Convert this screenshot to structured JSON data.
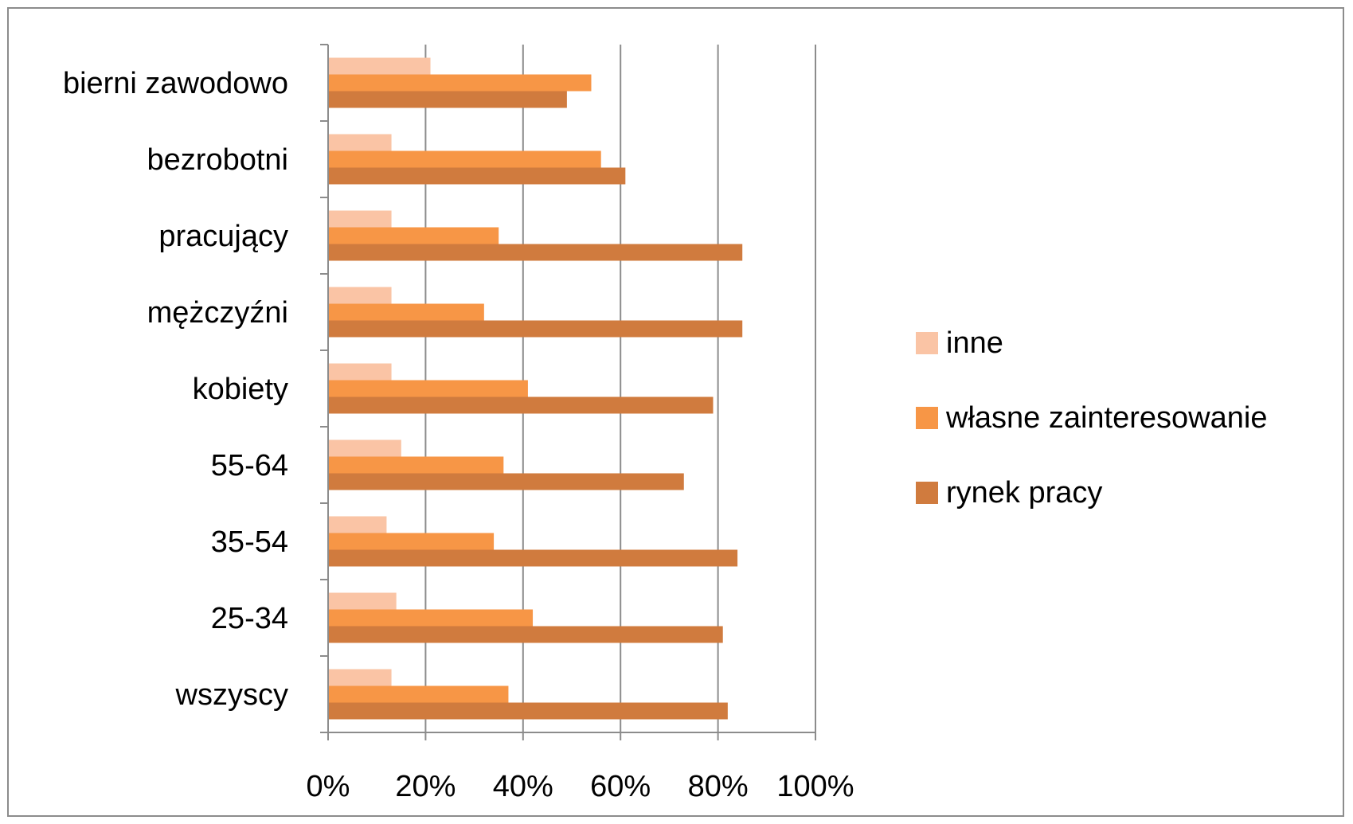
{
  "chart_data": {
    "type": "bar",
    "orientation": "horizontal",
    "categories": [
      "wszyscy",
      "25-34",
      "35-54",
      "55-64",
      "kobiety",
      "mężczyźni",
      "pracujący",
      "bezrobotni",
      "bierni zawodowo"
    ],
    "series": [
      {
        "name": "rynek pracy",
        "color": "#d07b3e",
        "values": [
          82,
          81,
          84,
          73,
          79,
          85,
          85,
          61,
          49
        ]
      },
      {
        "name": "własne zainteresowanie",
        "color": "#f79646",
        "values": [
          37,
          42,
          34,
          36,
          41,
          32,
          35,
          56,
          54
        ]
      },
      {
        "name": "inne",
        "color": "#fac4a5",
        "values": [
          13,
          14,
          12,
          15,
          13,
          13,
          13,
          13,
          21
        ]
      }
    ],
    "x_ticks": [
      "0%",
      "20%",
      "40%",
      "60%",
      "80%",
      "100%"
    ],
    "xlim": [
      0,
      100
    ],
    "grid": "vertical major gridlines",
    "legend_position": "right",
    "legend_order": [
      "inne",
      "własne zainteresowanie",
      "rynek pracy"
    ]
  }
}
